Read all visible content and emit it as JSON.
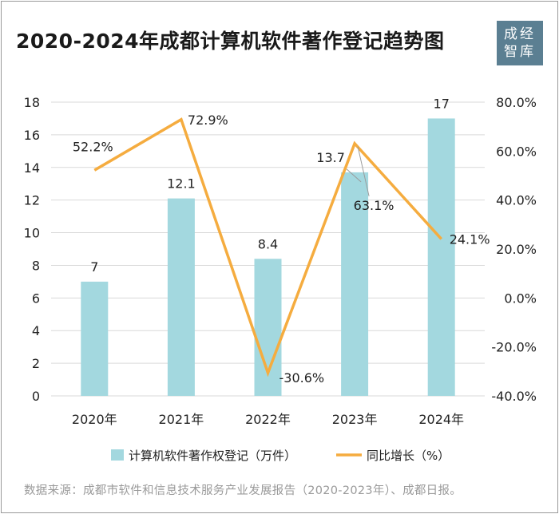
{
  "header": {
    "title": "2020-2024年成都计算机软件著作登记趋势图"
  },
  "logo": {
    "line1": "成经",
    "line2": "智库"
  },
  "colors": {
    "bar": "#a3d8df",
    "line": "#f5ac3f",
    "grid": "#d9d9d9",
    "text": "#222222",
    "source_text": "#9a9a9a",
    "logo_bg": "#5b7f92"
  },
  "chart_data": {
    "type": "bar",
    "title": "2020-2024年成都计算机软件著作登记趋势图",
    "categories": [
      "2020年",
      "2021年",
      "2022年",
      "2023年",
      "2024年"
    ],
    "series": [
      {
        "name": "计算机软件著作权登记（万件）",
        "type": "bar",
        "axis": "left",
        "values": [
          7,
          12.1,
          8.4,
          13.7,
          17
        ],
        "labels": [
          "7",
          "12.1",
          "8.4",
          "13.7",
          "17"
        ]
      },
      {
        "name": "同比增长（%）",
        "type": "line",
        "axis": "right",
        "values": [
          52.2,
          72.9,
          -30.6,
          63.1,
          24.1
        ],
        "labels": [
          "52.2%",
          "72.9%",
          "-30.6%",
          "63.1%",
          "24.1%"
        ]
      }
    ],
    "left_axis": {
      "min": 0,
      "max": 18,
      "ticks": [
        "0",
        "2",
        "4",
        "6",
        "8",
        "10",
        "12",
        "14",
        "16",
        "18"
      ]
    },
    "right_axis": {
      "min": -40,
      "max": 80,
      "ticks": [
        "-40.0%",
        "-20.0%",
        "0.0%",
        "20.0%",
        "40.0%",
        "60.0%",
        "80.0%"
      ]
    },
    "legend": {
      "position": "bottom",
      "bar_label": "计算机软件著作权登记（万件）",
      "line_label": "同比增长（%）"
    },
    "grid": true
  },
  "footer": {
    "source": "数据来源：成都市软件和信息技术服务产业发展报告（2020-2023年）、成都日报。"
  }
}
